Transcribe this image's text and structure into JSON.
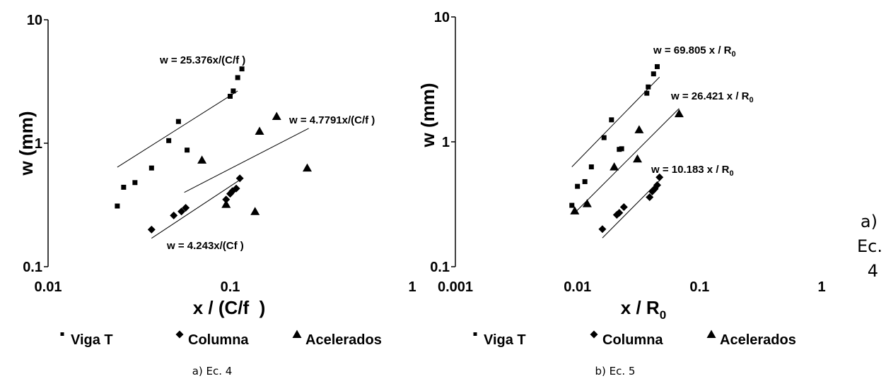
{
  "chart_data": [
    {
      "type": "scatter",
      "xscale": "log",
      "yscale": "log",
      "xlim": [
        0.01,
        1
      ],
      "ylim": [
        0.1,
        10
      ],
      "xticks": [
        "0.01",
        "0.1",
        "1"
      ],
      "yticks": [
        "10",
        "1",
        "0.1"
      ],
      "xlabel": "x / (C/f  )",
      "ylabel": "w (mm)",
      "caption": "a) Ec. 4",
      "series": [
        {
          "name": "Viga T",
          "marker": "square",
          "x": [
            0.024,
            0.026,
            0.03,
            0.037,
            0.046,
            0.052,
            0.058,
            0.1,
            0.104,
            0.11,
            0.116
          ],
          "y": [
            0.31,
            0.44,
            0.48,
            0.63,
            1.05,
            1.5,
            0.88,
            2.4,
            2.65,
            3.4,
            4.0
          ]
        },
        {
          "name": "Columna",
          "marker": "diamond",
          "x": [
            0.037,
            0.049,
            0.054,
            0.057,
            0.095,
            0.1,
            0.103,
            0.108,
            0.113
          ],
          "y": [
            0.2,
            0.26,
            0.28,
            0.3,
            0.35,
            0.39,
            0.41,
            0.43,
            0.52
          ]
        },
        {
          "name": "Acelerados",
          "marker": "triangle",
          "x": [
            0.07,
            0.095,
            0.137,
            0.145,
            0.18,
            0.265
          ],
          "y": [
            0.73,
            0.32,
            0.28,
            1.25,
            1.65,
            0.63
          ]
        }
      ],
      "trendlines": [
        {
          "label": "w = 25.376x/(C/f  )",
          "x": [
            0.024,
            0.11
          ],
          "y": [
            0.64,
            2.65
          ]
        },
        {
          "label": "w = 4.7791x/(C/f )",
          "x": [
            0.056,
            0.27
          ],
          "y": [
            0.4,
            1.32
          ]
        },
        {
          "label": "w = 4.243x/(Cf  )",
          "x": [
            0.037,
            0.112
          ],
          "y": [
            0.17,
            0.5
          ]
        }
      ]
    },
    {
      "type": "scatter",
      "xscale": "log",
      "yscale": "log",
      "xlim": [
        0.001,
        1
      ],
      "ylim": [
        0.1,
        10
      ],
      "xticks": [
        "0.001",
        "0.01",
        "0.1",
        "1"
      ],
      "yticks": [
        "10",
        "1",
        "0.1"
      ],
      "xlabel": "x / R",
      "xlabel_sub": "0",
      "ylabel": "w (mm)",
      "caption": "b) Ec. 5",
      "series": [
        {
          "name": "Viga T",
          "marker": "square",
          "x": [
            0.009,
            0.01,
            0.0115,
            0.013,
            0.0165,
            0.019,
            0.022,
            0.023,
            0.037,
            0.038,
            0.042,
            0.045
          ],
          "y": [
            0.31,
            0.44,
            0.48,
            0.63,
            1.08,
            1.5,
            0.87,
            0.88,
            2.45,
            2.75,
            3.5,
            4.0
          ]
        },
        {
          "name": "Columna",
          "marker": "diamond",
          "x": [
            0.016,
            0.021,
            0.022,
            0.024,
            0.039,
            0.041,
            0.043,
            0.045,
            0.047
          ],
          "y": [
            0.2,
            0.26,
            0.27,
            0.3,
            0.36,
            0.4,
            0.42,
            0.45,
            0.52
          ]
        },
        {
          "name": "Acelerados",
          "marker": "triangle",
          "x": [
            0.0095,
            0.012,
            0.02,
            0.031,
            0.032,
            0.068
          ],
          "y": [
            0.28,
            0.32,
            0.63,
            0.73,
            1.25,
            1.68
          ]
        }
      ],
      "trendlines": [
        {
          "label": "w = 69.805 x / R",
          "label_sub": "0",
          "x": [
            0.009,
            0.047
          ],
          "y": [
            0.63,
            3.3
          ]
        },
        {
          "label": "w = 26.421 x / R",
          "label_sub": "0",
          "x": [
            0.0095,
            0.068
          ],
          "y": [
            0.27,
            1.85
          ]
        },
        {
          "label": "w = 10.183 x / R",
          "label_sub": "0",
          "x": [
            0.016,
            0.048
          ],
          "y": [
            0.17,
            0.5
          ]
        }
      ]
    }
  ],
  "side_text": [
    "a)",
    "Ec.",
    "4"
  ]
}
